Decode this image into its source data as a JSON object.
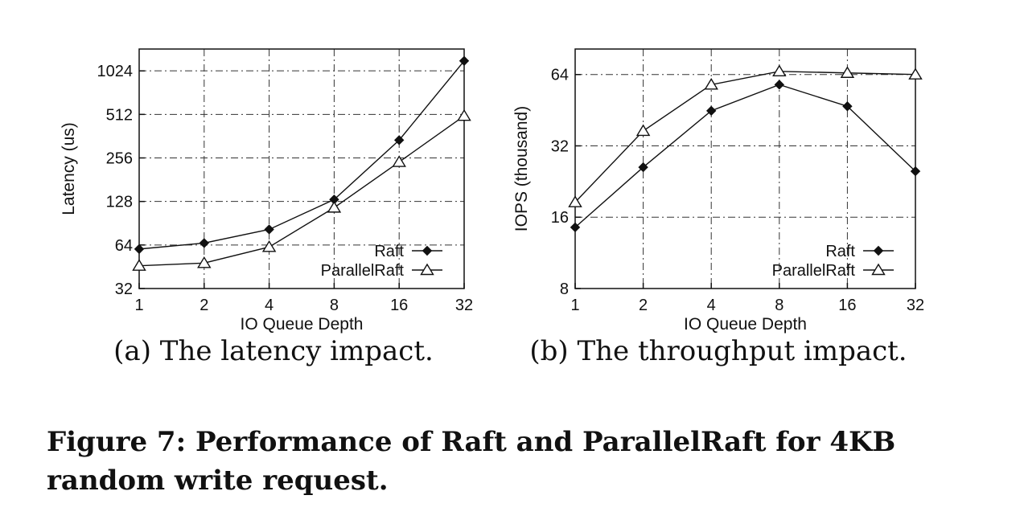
{
  "chart_data": [
    {
      "type": "line",
      "subcaption": "(a) The latency impact.",
      "xlabel": "IO Queue Depth",
      "ylabel": "Latency (us)",
      "xscale": "log2",
      "yscale": "log2",
      "x": [
        1,
        2,
        4,
        8,
        16,
        32
      ],
      "xticks": [
        "1",
        "2",
        "4",
        "8",
        "16",
        "32"
      ],
      "yticks": [
        32,
        64,
        128,
        256,
        512,
        1024
      ],
      "ylim": [
        32,
        1450
      ],
      "grid": true,
      "legend_position": "bottom-right",
      "series": [
        {
          "name": "Raft",
          "marker": "filled-diamond",
          "values": [
            60,
            66,
            82,
            132,
            340,
            1200
          ]
        },
        {
          "name": "ParallelRaft",
          "marker": "open-triangle",
          "values": [
            46,
            48,
            62,
            116,
            240,
            500
          ]
        }
      ]
    },
    {
      "type": "line",
      "subcaption": "(b) The throughput impact.",
      "xlabel": "IO Queue Depth",
      "ylabel": "IOPS (thousand)",
      "xscale": "log2",
      "yscale": "log2",
      "x": [
        1,
        2,
        4,
        8,
        16,
        32
      ],
      "xticks": [
        "1",
        "2",
        "4",
        "8",
        "16",
        "32"
      ],
      "yticks": [
        8,
        16,
        32,
        64
      ],
      "ylim": [
        8,
        82
      ],
      "grid": true,
      "legend_position": "bottom-right",
      "series": [
        {
          "name": "Raft",
          "marker": "filled-diamond",
          "values": [
            14.5,
            26,
            45,
            58,
            47,
            25
          ]
        },
        {
          "name": "ParallelRaft",
          "marker": "open-triangle",
          "values": [
            18.5,
            37,
            58,
            66,
            65,
            64
          ]
        }
      ]
    }
  ],
  "caption": "Figure 7: Performance of Raft and ParallelRaft for 4KB random write request."
}
